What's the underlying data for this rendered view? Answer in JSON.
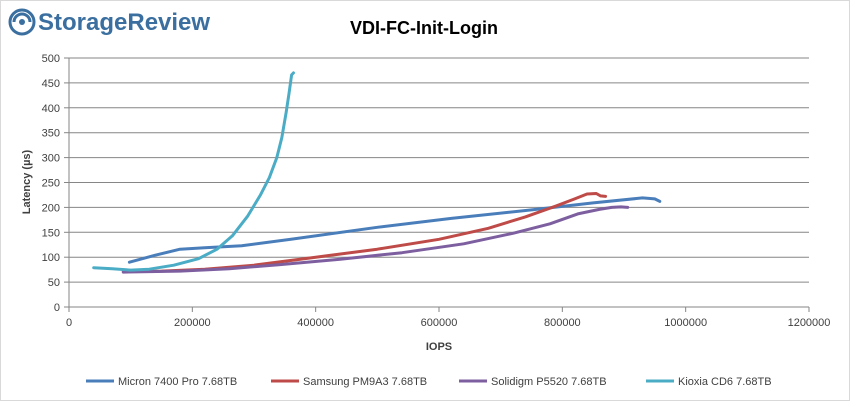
{
  "brand": {
    "name": "StorageReview",
    "color": "#3b6fa0"
  },
  "chart_data": {
    "type": "line",
    "title": "VDI-FC-Init-Login",
    "xlabel": "IOPS",
    "ylabel": "Latency (µs)",
    "xlim": [
      0,
      1200000
    ],
    "ylim": [
      0,
      500
    ],
    "xticks": [
      0,
      200000,
      400000,
      600000,
      800000,
      1000000,
      1200000
    ],
    "yticks": [
      0,
      50,
      100,
      150,
      200,
      250,
      300,
      350,
      400,
      450,
      500
    ],
    "grid": "horizontal",
    "legend_position": "bottom",
    "series": [
      {
        "name": "Micron 7400 Pro 7.68TB",
        "color": "#4a7ebb",
        "points": [
          [
            98000,
            90
          ],
          [
            140000,
            104
          ],
          [
            180000,
            116
          ],
          [
            220000,
            119
          ],
          [
            280000,
            123
          ],
          [
            360000,
            136
          ],
          [
            500000,
            160
          ],
          [
            620000,
            178
          ],
          [
            750000,
            195
          ],
          [
            850000,
            209
          ],
          [
            930000,
            219
          ],
          [
            950000,
            217
          ],
          [
            958000,
            212
          ]
        ]
      },
      {
        "name": "Samsung PM9A3 7.68TB",
        "color": "#be4b48",
        "points": [
          [
            88000,
            71
          ],
          [
            150000,
            72
          ],
          [
            220000,
            76
          ],
          [
            300000,
            84
          ],
          [
            400000,
            100
          ],
          [
            500000,
            116
          ],
          [
            600000,
            136
          ],
          [
            680000,
            158
          ],
          [
            740000,
            181
          ],
          [
            790000,
            203
          ],
          [
            820000,
            217
          ],
          [
            840000,
            227
          ],
          [
            855000,
            228
          ],
          [
            862000,
            223
          ],
          [
            870000,
            222
          ]
        ]
      },
      {
        "name": "Solidigm P5520 7.68TB",
        "color": "#7d5fa0",
        "points": [
          [
            88000,
            70
          ],
          [
            180000,
            72
          ],
          [
            260000,
            77
          ],
          [
            340000,
            85
          ],
          [
            440000,
            96
          ],
          [
            540000,
            109
          ],
          [
            640000,
            127
          ],
          [
            720000,
            148
          ],
          [
            780000,
            167
          ],
          [
            825000,
            187
          ],
          [
            860000,
            196
          ],
          [
            880000,
            200
          ],
          [
            895000,
            201
          ],
          [
            906000,
            200
          ]
        ]
      },
      {
        "name": "Kioxia CD6 7.68TB",
        "color": "#4bacc6",
        "points": [
          [
            40000,
            79
          ],
          [
            70000,
            77
          ],
          [
            100000,
            74
          ],
          [
            130000,
            76
          ],
          [
            170000,
            84
          ],
          [
            210000,
            97
          ],
          [
            240000,
            116
          ],
          [
            265000,
            143
          ],
          [
            290000,
            183
          ],
          [
            310000,
            224
          ],
          [
            325000,
            260
          ],
          [
            337000,
            300
          ],
          [
            345000,
            340
          ],
          [
            352000,
            390
          ],
          [
            357000,
            430
          ],
          [
            361000,
            466
          ],
          [
            364000,
            470
          ]
        ]
      }
    ]
  }
}
